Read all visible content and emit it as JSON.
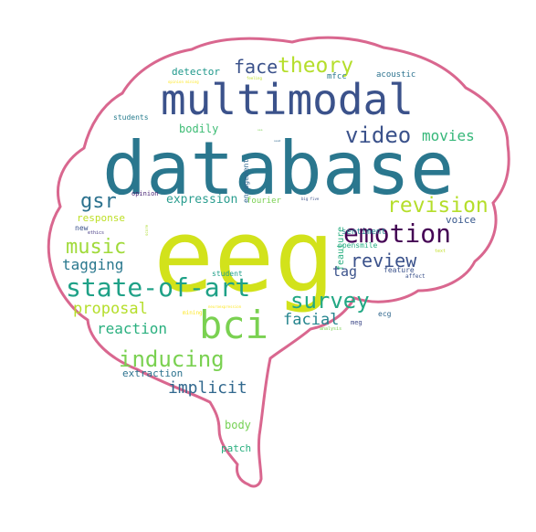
{
  "shape": {
    "outline_color": "#d9678f",
    "fill": "#ffffff"
  },
  "words": [
    {
      "text": "database",
      "color": "#2a778e"
    },
    {
      "text": "eeg",
      "color": "#d2e21b"
    },
    {
      "text": "multimodal",
      "color": "#3b528b"
    },
    {
      "text": "bci",
      "color": "#7ad151"
    },
    {
      "text": "emotion",
      "color": "#440154"
    },
    {
      "text": "state-of-art",
      "color": "#1fa187"
    },
    {
      "text": "survey",
      "color": "#22a884"
    },
    {
      "text": "inducing",
      "color": "#7ad151"
    },
    {
      "text": "revision",
      "color": "#b5de2b"
    },
    {
      "text": "theory",
      "color": "#b5de2b"
    },
    {
      "text": "video",
      "color": "#3b528b"
    },
    {
      "text": "music",
      "color": "#a0da39"
    },
    {
      "text": "gsr",
      "color": "#2c728e"
    },
    {
      "text": "review",
      "color": "#3b528b"
    },
    {
      "text": "face",
      "color": "#3b528b"
    },
    {
      "text": "facial",
      "color": "#25858e"
    },
    {
      "text": "implicit",
      "color": "#31688e"
    },
    {
      "text": "proposal",
      "color": "#b5de2b"
    },
    {
      "text": "tagging",
      "color": "#2a788e"
    },
    {
      "text": "reaction",
      "color": "#2ab07f"
    },
    {
      "text": "movies",
      "color": "#35b779"
    },
    {
      "text": "tag",
      "color": "#3b528b"
    },
    {
      "text": "expression",
      "color": "#2a9d8f"
    },
    {
      "text": "bodily",
      "color": "#3dbc74"
    },
    {
      "text": "detector",
      "color": "#1f988b"
    },
    {
      "text": "extraction",
      "color": "#2c728e"
    },
    {
      "text": "response",
      "color": "#bddf26"
    },
    {
      "text": "voice",
      "color": "#38588c"
    },
    {
      "text": "body",
      "color": "#75d054"
    },
    {
      "text": "patch",
      "color": "#29af7f"
    },
    {
      "text": "fourier",
      "color": "#7ad151"
    },
    {
      "text": "sentiment",
      "color": "#25858e"
    },
    {
      "text": "mfcc",
      "color": "#2a788e"
    },
    {
      "text": "acoustic",
      "color": "#2c728e"
    },
    {
      "text": "students",
      "color": "#287d8e"
    },
    {
      "text": "student",
      "color": "#1f9e89"
    },
    {
      "text": "new",
      "color": "#3b528b"
    },
    {
      "text": "opinion",
      "color": "#482475"
    },
    {
      "text": "feauture",
      "color": "#28ae80"
    },
    {
      "text": "opensmile",
      "color": "#26ad81"
    },
    {
      "text": "feature",
      "color": "#3b528b"
    },
    {
      "text": "ecg",
      "color": "#31688e"
    },
    {
      "text": "meg",
      "color": "#3e4989"
    },
    {
      "text": "engagement",
      "color": "#31688e"
    },
    {
      "text": "ethics",
      "color": "#443983"
    },
    {
      "text": "affect",
      "color": "#3b528b"
    },
    {
      "text": "mining",
      "color": "#fde725"
    },
    {
      "text": "analysis",
      "color": "#7ad151"
    },
    {
      "text": "text",
      "color": "#c2df23"
    },
    {
      "text": "opinion mining",
      "color": "#fde725"
    },
    {
      "text": "feeling",
      "color": "#bddf26"
    },
    {
      "text": "score",
      "color": "#addc30"
    },
    {
      "text": "big five",
      "color": "#3b528b"
    },
    {
      "text": "neuroexpression",
      "color": "#fde725"
    },
    {
      "text": "ssa",
      "color": "#7ad151"
    },
    {
      "text": "ssa2",
      "color": "#31688e"
    }
  ]
}
